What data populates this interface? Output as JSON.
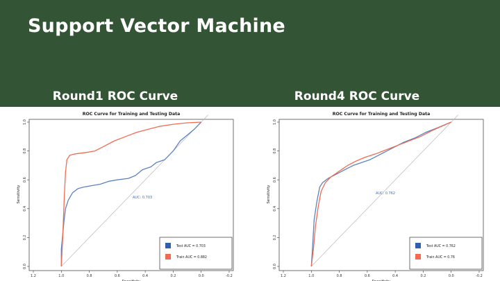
{
  "slide": {
    "title": "Support Vector Machine",
    "background_color": "#345436"
  },
  "chart_data": [
    {
      "type": "line",
      "heading": "Round1 ROC Curve",
      "title": "ROC Curve for Training and Testing Data",
      "xlabel": "Specificity",
      "ylabel": "Sensitivity",
      "xlim": [
        1.2,
        -0.2
      ],
      "ylim": [
        0,
        1
      ],
      "x_reversed": true,
      "x_ticks": [
        "1.2",
        "1.0",
        "0.8",
        "0.6",
        "0.4",
        "0.2",
        "0.0",
        "-0.2"
      ],
      "y_ticks": [
        "0.0",
        "0.2",
        "0.4",
        "0.6",
        "0.8",
        "1.0"
      ],
      "annotation": {
        "text": "AUC: 0.703",
        "x": 0.42,
        "y": 0.47
      },
      "legend": {
        "placement": "bottom-right",
        "entries": [
          {
            "label": "Test AUC = 0.703",
            "color": "#2F5FAE"
          },
          {
            "label": "Train AUC = 0.882",
            "color": "#F26A4F"
          }
        ]
      },
      "series": [
        {
          "name": "Test AUC = 0.703",
          "color": "#5B82C2",
          "points": [
            [
              1.0,
              0.0
            ],
            [
              1.0,
              0.12
            ],
            [
              0.99,
              0.22
            ],
            [
              0.98,
              0.32
            ],
            [
              0.97,
              0.4
            ],
            [
              0.95,
              0.46
            ],
            [
              0.92,
              0.51
            ],
            [
              0.88,
              0.54
            ],
            [
              0.84,
              0.55
            ],
            [
              0.78,
              0.56
            ],
            [
              0.72,
              0.57
            ],
            [
              0.66,
              0.59
            ],
            [
              0.6,
              0.6
            ],
            [
              0.52,
              0.61
            ],
            [
              0.47,
              0.63
            ],
            [
              0.42,
              0.67
            ],
            [
              0.36,
              0.69
            ],
            [
              0.32,
              0.72
            ],
            [
              0.26,
              0.74
            ],
            [
              0.2,
              0.8
            ],
            [
              0.15,
              0.87
            ],
            [
              0.1,
              0.91
            ],
            [
              0.05,
              0.95
            ],
            [
              0.0,
              1.0
            ]
          ]
        },
        {
          "name": "Train AUC = 0.882",
          "color": "#F26A4F",
          "points": [
            [
              1.0,
              0.0
            ],
            [
              0.99,
              0.2
            ],
            [
              0.98,
              0.45
            ],
            [
              0.97,
              0.65
            ],
            [
              0.96,
              0.74
            ],
            [
              0.94,
              0.77
            ],
            [
              0.9,
              0.78
            ],
            [
              0.82,
              0.79
            ],
            [
              0.76,
              0.8
            ],
            [
              0.7,
              0.83
            ],
            [
              0.62,
              0.87
            ],
            [
              0.54,
              0.9
            ],
            [
              0.46,
              0.93
            ],
            [
              0.38,
              0.95
            ],
            [
              0.3,
              0.97
            ],
            [
              0.2,
              0.985
            ],
            [
              0.1,
              0.995
            ],
            [
              0.0,
              1.0
            ]
          ]
        }
      ]
    },
    {
      "type": "line",
      "heading": "Round4 ROC Curve",
      "title": "ROC Curve for Training and Testing Data",
      "xlabel": "Specificity",
      "ylabel": "Sensitivity",
      "xlim": [
        1.2,
        -0.2
      ],
      "ylim": [
        0,
        1
      ],
      "x_reversed": true,
      "x_ticks": [
        "1.2",
        "1.0",
        "0.8",
        "0.6",
        "0.4",
        "0.2",
        "0.0",
        "-0.2"
      ],
      "y_ticks": [
        "0.0",
        "0.2",
        "0.4",
        "0.6",
        "0.8",
        "1.0"
      ],
      "annotation": {
        "text": "AUC: 0.762",
        "x": 0.47,
        "y": 0.5
      },
      "legend": {
        "placement": "bottom-right",
        "entries": [
          {
            "label": "Test AUC = 0.762",
            "color": "#2F5FAE"
          },
          {
            "label": "Train AUC = 0.76",
            "color": "#F26A4F"
          }
        ]
      },
      "series": [
        {
          "name": "Test AUC = 0.762",
          "color": "#5B82C2",
          "points": [
            [
              1.0,
              0.0
            ],
            [
              0.99,
              0.15
            ],
            [
              0.98,
              0.32
            ],
            [
              0.96,
              0.45
            ],
            [
              0.94,
              0.55
            ],
            [
              0.92,
              0.58
            ],
            [
              0.88,
              0.61
            ],
            [
              0.82,
              0.64
            ],
            [
              0.76,
              0.67
            ],
            [
              0.7,
              0.7
            ],
            [
              0.64,
              0.72
            ],
            [
              0.58,
              0.74
            ],
            [
              0.5,
              0.78
            ],
            [
              0.42,
              0.82
            ],
            [
              0.34,
              0.86
            ],
            [
              0.26,
              0.89
            ],
            [
              0.18,
              0.93
            ],
            [
              0.1,
              0.96
            ],
            [
              0.0,
              1.0
            ]
          ]
        },
        {
          "name": "Train AUC = 0.76",
          "color": "#F26A4F",
          "points": [
            [
              1.0,
              0.0
            ],
            [
              0.985,
              0.12
            ],
            [
              0.97,
              0.28
            ],
            [
              0.95,
              0.42
            ],
            [
              0.93,
              0.52
            ],
            [
              0.9,
              0.58
            ],
            [
              0.86,
              0.62
            ],
            [
              0.8,
              0.66
            ],
            [
              0.74,
              0.7
            ],
            [
              0.68,
              0.73
            ],
            [
              0.62,
              0.755
            ],
            [
              0.54,
              0.78
            ],
            [
              0.46,
              0.81
            ],
            [
              0.38,
              0.84
            ],
            [
              0.3,
              0.87
            ],
            [
              0.22,
              0.9
            ],
            [
              0.14,
              0.94
            ],
            [
              0.07,
              0.97
            ],
            [
              0.0,
              1.0
            ]
          ]
        }
      ]
    }
  ]
}
